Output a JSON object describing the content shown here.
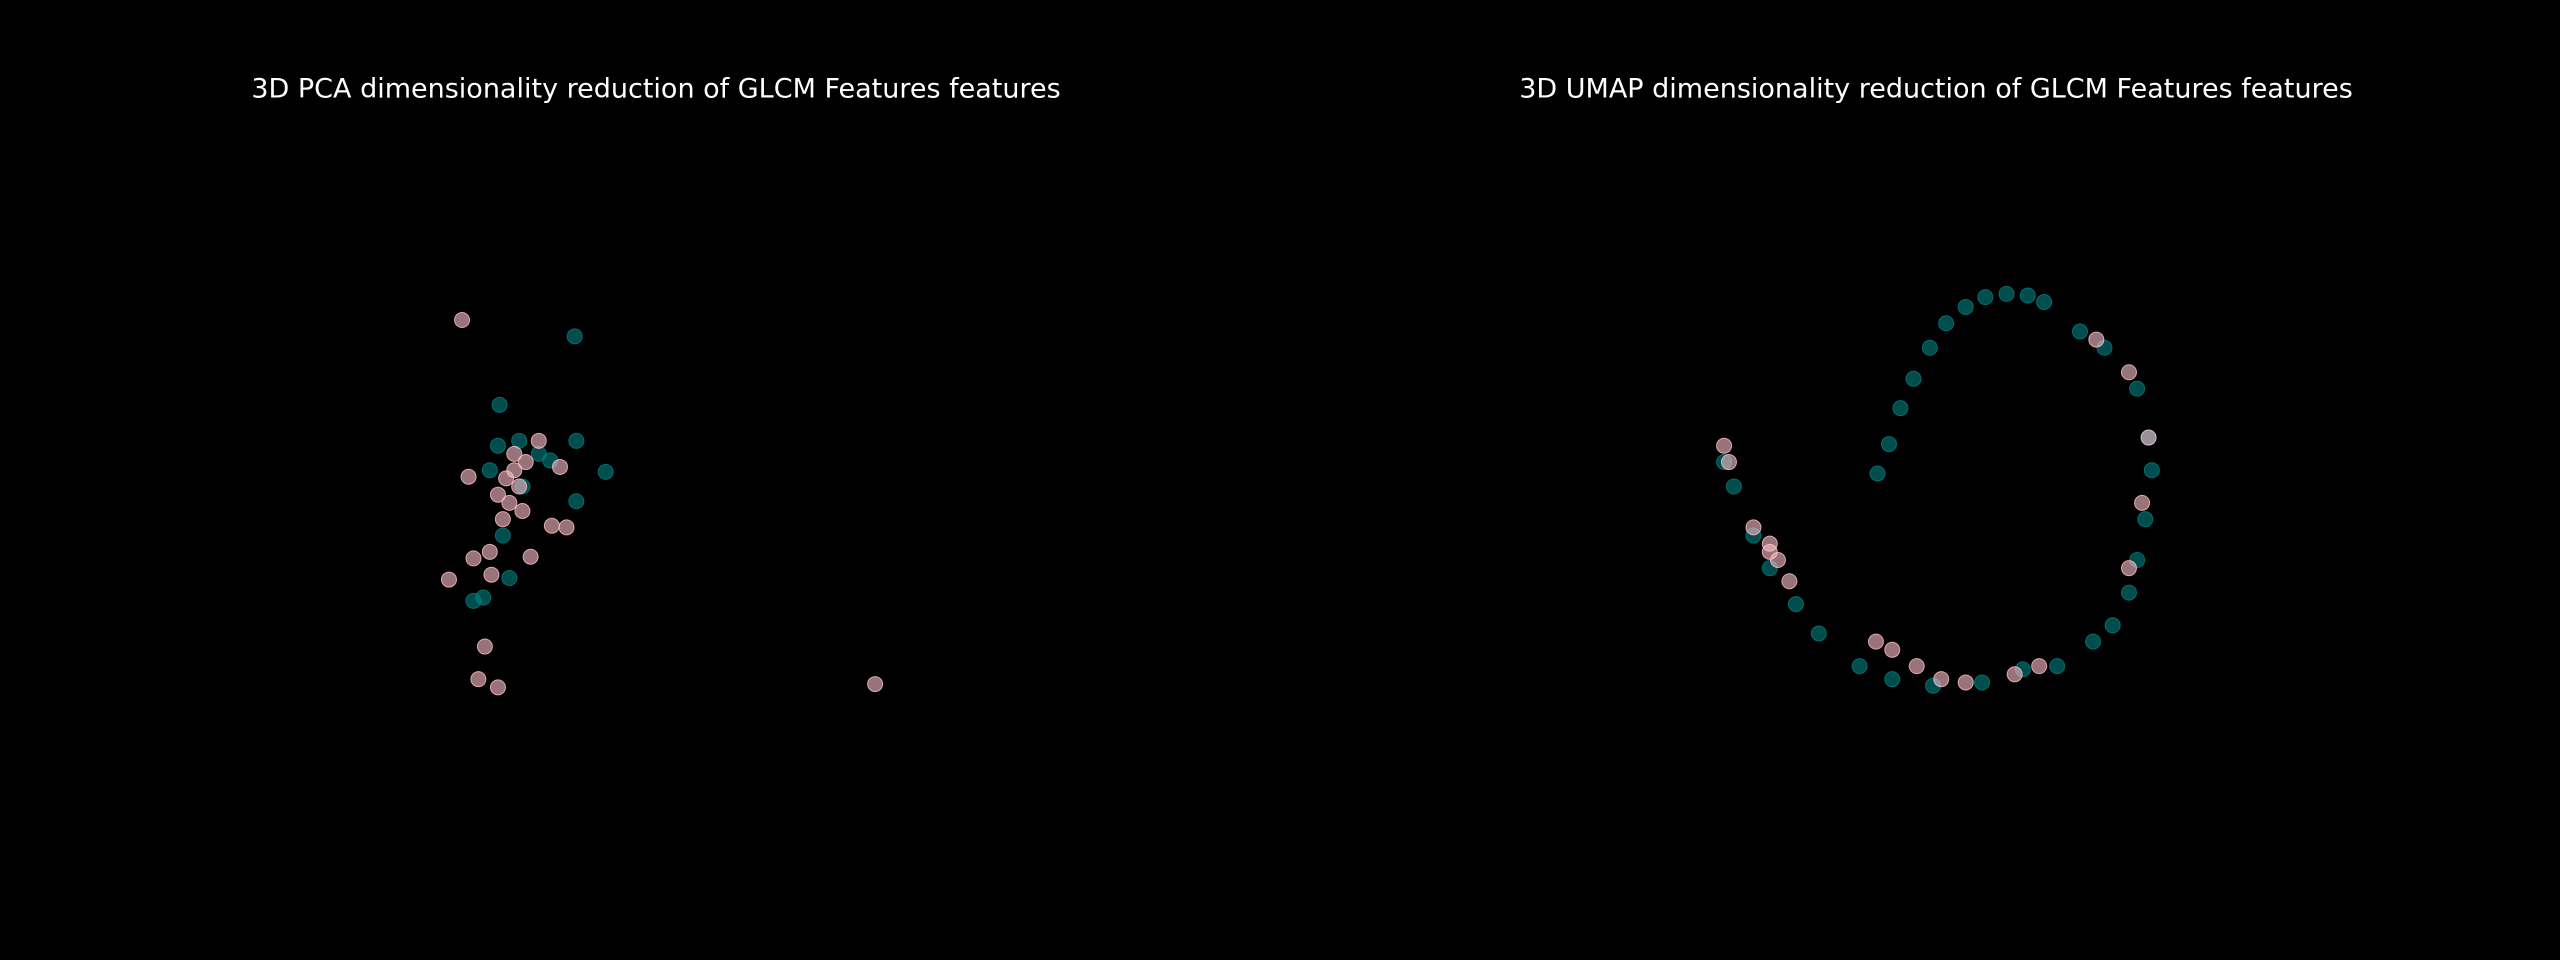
{
  "chart_data": [
    {
      "type": "scatter",
      "title": "3D PCA dimensionality reduction of GLCM Features features",
      "xlim": [
        0,
        784
      ],
      "ylim": [
        0,
        588
      ],
      "grid": false,
      "series": [
        {
          "color": "#008080",
          "x": [
            352,
            306,
            371,
            353,
            353,
            312,
            296,
            337,
            305,
            318,
            330,
            300,
            290,
            320,
            308
          ],
          "values": [
            382,
            340,
            299,
            318,
            281,
            234,
            222,
            306,
            315,
            318,
            310,
            300,
            220,
            290,
            260
          ]
        },
        {
          "color": "#ffc0cb",
          "x": [
            283,
            536,
            305,
            293,
            297,
            275,
            301,
            290,
            325,
            347,
            338,
            315,
            318,
            312,
            320,
            310,
            322,
            315,
            305,
            308,
            300,
            287,
            343,
            330
          ],
          "values": [
            392,
            169,
            167,
            172,
            192,
            233,
            236,
            246,
            247,
            265,
            266,
            300,
            290,
            280,
            275,
            295,
            305,
            310,
            285,
            270,
            250,
            296,
            302,
            318
          ]
        }
      ]
    },
    {
      "type": "scatter",
      "title": "3D UMAP dimensionality reduction of GLCM Features features",
      "xlim": [
        0,
        784
      ],
      "ylim": [
        0,
        588
      ],
      "grid": false,
      "series": [
        {
          "color": "#008080",
          "x": [
            366,
            373,
            380,
            388,
            398,
            408,
            420,
            432,
            445,
            458,
            468,
            490,
            505,
            525,
            532,
            534,
            530,
            525,
            520,
            510,
            498,
            476,
            455,
            430,
            400,
            375,
            355,
            330,
            316,
            300,
            290,
            278,
            272
          ],
          "values": [
            298,
            316,
            338,
            356,
            375,
            390,
            400,
            406,
            408,
            407,
            403,
            385,
            375,
            350,
            320,
            300,
            270,
            245,
            225,
            205,
            195,
            180,
            178,
            170,
            168,
            172,
            180,
            200,
            218,
            240,
            260,
            290,
            305
          ]
        },
        {
          "color": "#ffc0cb",
          "x": [
            272,
            275,
            290,
            300,
            305,
            312,
            365,
            375,
            390,
            405,
            420,
            450,
            465,
            520,
            528,
            532,
            520,
            500,
            300
          ],
          "values": [
            315,
            305,
            265,
            255,
            245,
            232,
            195,
            190,
            180,
            172,
            170,
            175,
            180,
            240,
            280,
            320,
            360,
            380,
            250
          ]
        }
      ]
    }
  ]
}
